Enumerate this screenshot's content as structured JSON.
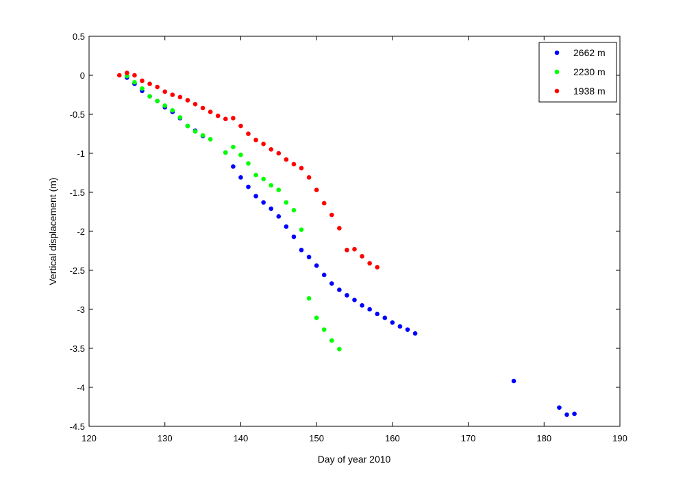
{
  "chart_data": {
    "type": "scatter",
    "title": "",
    "xlabel": "Day of year 2010",
    "ylabel": "Vertical displacement (m)",
    "xlim": [
      120,
      190
    ],
    "ylim": [
      -4.5,
      0.5
    ],
    "xticks": [
      "120",
      "130",
      "140",
      "150",
      "160",
      "170",
      "180",
      "190"
    ],
    "yticks": [
      "0.5",
      "0",
      "-0.5",
      "-1",
      "-1.5",
      "-2",
      "-2.5",
      "-3",
      "-3.5",
      "-4",
      "-4.5"
    ],
    "grid": false,
    "legend_position": "top-right",
    "series": [
      {
        "name": "2662 m",
        "color": "#0000ff",
        "x": [
          125,
          126,
          127,
          128,
          129,
          130,
          131,
          132,
          133,
          134,
          135,
          138,
          139,
          140,
          141,
          142,
          143,
          144,
          145,
          146,
          147,
          148,
          149,
          150,
          151,
          152,
          153,
          154,
          155,
          156,
          157,
          158,
          159,
          160,
          161,
          162,
          163,
          176,
          182,
          183,
          184
        ],
        "y": [
          -0.03,
          -0.11,
          -0.2,
          -0.27,
          -0.33,
          -0.41,
          -0.47,
          -0.55,
          -0.65,
          -0.71,
          -0.78,
          -0.99,
          -1.17,
          -1.31,
          -1.43,
          -1.55,
          -1.63,
          -1.71,
          -1.81,
          -1.94,
          -2.07,
          -2.24,
          -2.33,
          -2.44,
          -2.56,
          -2.67,
          -2.75,
          -2.82,
          -2.88,
          -2.95,
          -3.0,
          -3.06,
          -3.11,
          -3.17,
          -3.22,
          -3.26,
          -3.31,
          -3.92,
          -4.26,
          -4.35,
          -4.34
        ]
      },
      {
        "name": "2230 m",
        "color": "#00ff00",
        "x": [
          125,
          126,
          127,
          128,
          129,
          130,
          131,
          132,
          133,
          134,
          135,
          136,
          138,
          139,
          140,
          141,
          142,
          143,
          144,
          145,
          146,
          147,
          148,
          149,
          150,
          151,
          152,
          153
        ],
        "y": [
          -0.01,
          -0.09,
          -0.17,
          -0.27,
          -0.33,
          -0.39,
          -0.45,
          -0.54,
          -0.65,
          -0.72,
          -0.77,
          -0.82,
          -0.99,
          -0.92,
          -1.02,
          -1.13,
          -1.28,
          -1.33,
          -1.41,
          -1.47,
          -1.63,
          -1.73,
          -1.98,
          -2.86,
          -3.11,
          -3.26,
          -3.4,
          -3.51
        ]
      },
      {
        "name": "1938 m",
        "color": "#ff0000",
        "x": [
          124,
          125,
          126,
          127,
          128,
          129,
          130,
          131,
          132,
          133,
          134,
          135,
          136,
          137,
          138,
          139,
          140,
          141,
          142,
          143,
          144,
          145,
          146,
          147,
          148,
          149,
          150,
          151,
          152,
          153,
          154,
          155,
          156,
          157,
          158
        ],
        "y": [
          0.0,
          0.03,
          0.0,
          -0.07,
          -0.11,
          -0.15,
          -0.21,
          -0.25,
          -0.28,
          -0.32,
          -0.37,
          -0.42,
          -0.47,
          -0.52,
          -0.56,
          -0.55,
          -0.65,
          -0.75,
          -0.83,
          -0.88,
          -0.95,
          -1.0,
          -1.08,
          -1.14,
          -1.19,
          -1.31,
          -1.47,
          -1.64,
          -1.79,
          -1.96,
          -2.24,
          -2.23,
          -2.32,
          -2.41,
          -2.46
        ]
      }
    ]
  }
}
